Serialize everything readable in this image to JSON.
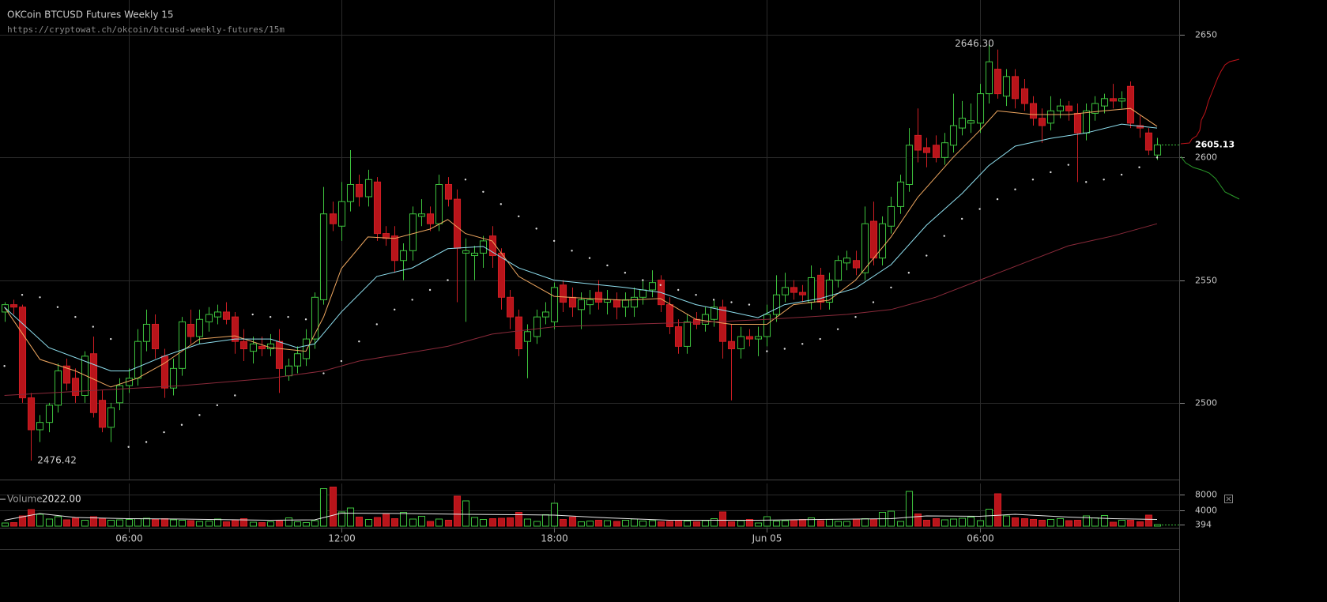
{
  "chart_data": {
    "type": "candlestick",
    "title": "OKCoin BTCUSD Futures Weekly 15",
    "subtitle": "https://cryptowat.ch/okcoin/btcusd-weekly-futures/15m",
    "xlim": [
      -0.5,
      132.5
    ],
    "xticks": [
      {
        "value": 14,
        "label": "06:00"
      },
      {
        "value": 38,
        "label": "12:00"
      },
      {
        "value": 62,
        "label": "18:00"
      },
      {
        "value": 86,
        "label": "Jun 05"
      },
      {
        "value": 110,
        "label": "06:00"
      }
    ],
    "ylim": [
      2468.7,
      2664.2
    ],
    "yticks": [
      2500,
      2550,
      2600,
      2650
    ],
    "grid": true,
    "up_color": "#3ec43e",
    "down_color": "#b8141a",
    "ohlc": [
      [
        2537,
        2541,
        2533,
        2540
      ],
      [
        2540,
        2542,
        2536,
        2539
      ],
      [
        2539,
        2540,
        2500,
        2502
      ],
      [
        2502,
        2504,
        2476.42,
        2489
      ],
      [
        2489,
        2495,
        2484,
        2492
      ],
      [
        2492,
        2500,
        2488,
        2499
      ],
      [
        2499,
        2516,
        2496,
        2513
      ],
      [
        2515,
        2518,
        2505,
        2508
      ],
      [
        2510,
        2514,
        2500,
        2503
      ],
      [
        2503,
        2521,
        2500,
        2519
      ],
      [
        2520,
        2527,
        2494,
        2496
      ],
      [
        2501,
        2505,
        2488,
        2490
      ],
      [
        2490,
        2500,
        2484,
        2498
      ],
      [
        2500,
        2510,
        2497,
        2507
      ],
      [
        2507,
        2514,
        2504,
        2510
      ],
      [
        2510,
        2530,
        2507,
        2525
      ],
      [
        2525,
        2538,
        2521,
        2532
      ],
      [
        2532,
        2536,
        2518,
        2522
      ],
      [
        2519,
        2522,
        2502,
        2506
      ],
      [
        2506,
        2518,
        2503,
        2514
      ],
      [
        2514,
        2535,
        2511,
        2533
      ],
      [
        2532,
        2538,
        2524,
        2527
      ],
      [
        2527,
        2538,
        2524,
        2534
      ],
      [
        2533,
        2539,
        2529,
        2536
      ],
      [
        2535,
        2540,
        2532,
        2537
      ],
      [
        2537,
        2541,
        2532,
        2534
      ],
      [
        2535,
        2537,
        2520,
        2525
      ],
      [
        2525,
        2530,
        2517,
        2522
      ],
      [
        2521,
        2527,
        2516,
        2524
      ],
      [
        2523,
        2527,
        2519,
        2522
      ],
      [
        2522,
        2528,
        2519,
        2524
      ],
      [
        2525,
        2530,
        2504,
        2514
      ],
      [
        2511,
        2518,
        2509,
        2515
      ],
      [
        2515,
        2523,
        2512,
        2520
      ],
      [
        2518,
        2530,
        2515,
        2526
      ],
      [
        2526,
        2545,
        2522,
        2543
      ],
      [
        2542,
        2588,
        2540,
        2577
      ],
      [
        2577,
        2582,
        2570,
        2573
      ],
      [
        2572,
        2590,
        2566,
        2582
      ],
      [
        2582,
        2603,
        2578,
        2589
      ],
      [
        2589,
        2593,
        2580,
        2584
      ],
      [
        2584,
        2595,
        2580,
        2591
      ],
      [
        2590,
        2592,
        2566,
        2569
      ],
      [
        2569,
        2572,
        2564,
        2567
      ],
      [
        2568,
        2572,
        2553,
        2558
      ],
      [
        2558,
        2565,
        2550,
        2562
      ],
      [
        2562,
        2580,
        2558,
        2577
      ],
      [
        2576,
        2583,
        2572,
        2577
      ],
      [
        2577,
        2580,
        2570,
        2573
      ],
      [
        2573,
        2593,
        2570,
        2589
      ],
      [
        2589,
        2592,
        2580,
        2583
      ],
      [
        2583,
        2587,
        2541,
        2563
      ],
      [
        2561,
        2567,
        2533,
        2562
      ],
      [
        2560,
        2564,
        2550,
        2561
      ],
      [
        2561,
        2568,
        2555,
        2566
      ],
      [
        2568,
        2572,
        2555,
        2560
      ],
      [
        2561,
        2563,
        2538,
        2543
      ],
      [
        2543,
        2546,
        2530,
        2535
      ],
      [
        2535,
        2538,
        2519,
        2522
      ],
      [
        2525,
        2532,
        2510,
        2529
      ],
      [
        2527,
        2538,
        2524,
        2535
      ],
      [
        2535,
        2541,
        2532,
        2537
      ],
      [
        2533,
        2549,
        2530,
        2547
      ],
      [
        2548,
        2550,
        2537,
        2541
      ],
      [
        2543,
        2547,
        2535,
        2539
      ],
      [
        2538,
        2545,
        2530,
        2542
      ],
      [
        2540,
        2546,
        2536,
        2542
      ],
      [
        2545,
        2550,
        2538,
        2541
      ],
      [
        2541,
        2546,
        2536,
        2542
      ],
      [
        2542,
        2545,
        2534,
        2539
      ],
      [
        2539,
        2545,
        2535,
        2542
      ],
      [
        2539,
        2547,
        2535,
        2543
      ],
      [
        2543,
        2550,
        2540,
        2546
      ],
      [
        2546,
        2554,
        2543,
        2549
      ],
      [
        2550,
        2552,
        2537,
        2540
      ],
      [
        2540,
        2543,
        2528,
        2531
      ],
      [
        2531,
        2534,
        2520,
        2523
      ],
      [
        2523,
        2536,
        2520,
        2533
      ],
      [
        2534,
        2537,
        2530,
        2532
      ],
      [
        2532,
        2539,
        2529,
        2536
      ],
      [
        2534,
        2542,
        2531,
        2539
      ],
      [
        2539,
        2542,
        2518,
        2525
      ],
      [
        2525,
        2532,
        2501,
        2522
      ],
      [
        2522,
        2531,
        2518,
        2527
      ],
      [
        2527,
        2530,
        2523,
        2526
      ],
      [
        2526,
        2531,
        2519,
        2527
      ],
      [
        2527,
        2540,
        2523,
        2536
      ],
      [
        2536,
        2552,
        2533,
        2544
      ],
      [
        2544,
        2553,
        2541,
        2547
      ],
      [
        2547,
        2550,
        2542,
        2545
      ],
      [
        2545,
        2548,
        2541,
        2544
      ],
      [
        2541,
        2556,
        2538,
        2551
      ],
      [
        2552,
        2555,
        2538,
        2541
      ],
      [
        2541,
        2553,
        2538,
        2550
      ],
      [
        2550,
        2560,
        2547,
        2558
      ],
      [
        2557,
        2562,
        2554,
        2559
      ],
      [
        2558,
        2562,
        2552,
        2555
      ],
      [
        2553,
        2580,
        2550,
        2573
      ],
      [
        2574,
        2582,
        2556,
        2559
      ],
      [
        2559,
        2576,
        2556,
        2573
      ],
      [
        2572,
        2584,
        2569,
        2580
      ],
      [
        2580,
        2593,
        2577,
        2590
      ],
      [
        2589,
        2612,
        2586,
        2605
      ],
      [
        2609,
        2620,
        2598,
        2603
      ],
      [
        2604,
        2608,
        2596,
        2602
      ],
      [
        2605,
        2609,
        2598,
        2600
      ],
      [
        2600,
        2610,
        2597,
        2606
      ],
      [
        2605,
        2626,
        2602,
        2613
      ],
      [
        2612,
        2623,
        2609,
        2616
      ],
      [
        2614,
        2622,
        2610,
        2615
      ],
      [
        2614,
        2630,
        2610,
        2626
      ],
      [
        2626,
        2646.3,
        2622,
        2639
      ],
      [
        2636,
        2644,
        2624,
        2626
      ],
      [
        2625,
        2636,
        2621,
        2633
      ],
      [
        2633,
        2636,
        2620,
        2624
      ],
      [
        2628,
        2632,
        2619,
        2622
      ],
      [
        2622,
        2625,
        2613,
        2616
      ],
      [
        2616,
        2620,
        2606,
        2613
      ],
      [
        2614,
        2625,
        2611,
        2619
      ],
      [
        2619,
        2624,
        2616,
        2621
      ],
      [
        2621,
        2623,
        2615,
        2619
      ],
      [
        2618,
        2622,
        2590,
        2610
      ],
      [
        2610,
        2622,
        2607,
        2619
      ],
      [
        2618,
        2625,
        2615,
        2622
      ],
      [
        2621,
        2626,
        2618,
        2624
      ],
      [
        2624,
        2630,
        2620,
        2623
      ],
      [
        2623,
        2627,
        2620,
        2624
      ],
      [
        2629,
        2631,
        2612,
        2614
      ],
      [
        2613,
        2617,
        2608,
        2612
      ],
      [
        2610,
        2612,
        2601,
        2603
      ],
      [
        2601,
        2608,
        2599,
        2605.13
      ]
    ],
    "series": [
      {
        "style": "line",
        "color": "#f0a860",
        "x": [
          0,
          4,
          8,
          12,
          15,
          18,
          22,
          26,
          30,
          34,
          36,
          38,
          41,
          44,
          48,
          50,
          52,
          55,
          58,
          62,
          66,
          70,
          74,
          78,
          82,
          86,
          89,
          93,
          96,
          100,
          103,
          107,
          110,
          112,
          116,
          120,
          124,
          127,
          130
        ],
        "values": [
          2539,
          2517.7,
          2513,
          2506.4,
          2510,
          2516,
          2526,
          2527.3,
          2522.5,
          2521,
          2535,
          2554.7,
          2567.6,
          2567,
          2570.8,
          2574.7,
          2569,
          2566,
          2551.5,
          2543.4,
          2542.5,
          2541.8,
          2542.5,
          2534,
          2532,
          2532,
          2540,
          2541.8,
          2550,
          2567.6,
          2583.7,
          2600,
          2611,
          2619,
          2617.5,
          2617.5,
          2619,
          2620,
          2612.7
        ]
      },
      {
        "style": "line",
        "color": "#8fe0f0",
        "x": [
          0,
          5,
          12,
          14,
          18,
          22,
          26,
          30,
          33,
          35,
          38,
          42,
          46,
          50,
          54,
          58,
          62,
          70,
          74,
          78,
          82,
          85,
          88,
          92,
          96,
          100,
          104,
          108,
          111,
          114,
          118,
          122,
          126,
          130
        ],
        "values": [
          2539,
          2522.5,
          2513,
          2513,
          2519,
          2524,
          2526,
          2526,
          2522.5,
          2524,
          2537,
          2551.5,
          2555,
          2562.8,
          2563.7,
          2555,
          2550,
          2547,
          2545,
          2540,
          2537,
          2534.7,
          2540,
          2542.5,
          2546.7,
          2556.3,
          2572.4,
          2585.3,
          2596.6,
          2604.6,
          2607.8,
          2610,
          2613.6,
          2612
        ]
      },
      {
        "style": "line",
        "color": "#8a2a3a",
        "x": [
          0,
          10,
          20,
          30,
          36,
          40,
          50,
          55,
          62,
          70,
          80,
          86,
          95,
          100,
          105,
          110,
          115,
          120,
          125,
          130
        ],
        "values": [
          2503,
          2505,
          2507,
          2510,
          2513,
          2517,
          2523,
          2528,
          2531,
          2532,
          2533,
          2534,
          2536,
          2538,
          2543,
          2550,
          2557,
          2564,
          2568,
          2573
        ]
      },
      {
        "style": "dots",
        "color": "#dddddd",
        "x": [
          0,
          2,
          4,
          6,
          8,
          10,
          12,
          14,
          16,
          18,
          20,
          22,
          24,
          26,
          28,
          30,
          32,
          34,
          36,
          38,
          40,
          42,
          44,
          46,
          48,
          50,
          52,
          54,
          56,
          58,
          60,
          62,
          64,
          66,
          68,
          70,
          72,
          74,
          76,
          78,
          80,
          82,
          84,
          86,
          88,
          90,
          92,
          94,
          96,
          98,
          100,
          102,
          104,
          106,
          108,
          110,
          112,
          114,
          116,
          118,
          120,
          122,
          124,
          126,
          128,
          130
        ],
        "values": [
          2515,
          2544,
          2543,
          2539,
          2535,
          2531,
          2526,
          2482,
          2484,
          2488,
          2491,
          2495,
          2499,
          2503,
          2536,
          2535,
          2535,
          2534,
          2512,
          2517,
          2525,
          2532,
          2538,
          2542,
          2546,
          2550,
          2591,
          2586,
          2581,
          2576,
          2571,
          2566,
          2562,
          2559,
          2556,
          2553,
          2550,
          2548,
          2546,
          2544,
          2542,
          2541,
          2540,
          2521,
          2522,
          2524,
          2526,
          2530,
          2535,
          2541,
          2547,
          2553,
          2560,
          2568,
          2575,
          2579,
          2583,
          2587,
          2591,
          2594,
          2597,
          2590,
          2591,
          2593,
          2596,
          2600
        ]
      }
    ],
    "annotations": [
      {
        "x": 111,
        "value": 2646.3,
        "label": "2646.30"
      },
      {
        "x": 3,
        "value": 2476.42,
        "label": "2476.42"
      }
    ],
    "last_price": 2605.13,
    "volume": {
      "label": "Volume",
      "current": {
        "value": 2022,
        "label": "2022.00"
      },
      "ylim": [
        0,
        10800
      ],
      "yticks": [
        8000,
        4000,
        394
      ],
      "values": [
        800,
        900,
        2600,
        4200,
        3000,
        1800,
        2400,
        1600,
        2000,
        1500,
        2400,
        1900,
        1500,
        1600,
        1700,
        1900,
        2000,
        1700,
        1900,
        1600,
        1500,
        1400,
        1200,
        1300,
        1800,
        1100,
        1600,
        1900,
        1000,
        900,
        1100,
        1300,
        2100,
        1100,
        900,
        1400,
        9500,
        9900,
        3600,
        4600,
        2300,
        1700,
        2200,
        3000,
        1900,
        3500,
        1800,
        2500,
        1200,
        1800,
        1500,
        7600,
        6400,
        2200,
        1700,
        1900,
        2000,
        2100,
        3500,
        1800,
        1200,
        2900,
        5800,
        1700,
        2300,
        1100,
        1300,
        1500,
        1400,
        1200,
        1500,
        1800,
        1300,
        1400,
        1100,
        1200,
        1500,
        1300,
        1100,
        1400,
        1900,
        3600,
        1100,
        1400,
        1700,
        800,
        2400,
        1300,
        1400,
        1600,
        1700,
        2100,
        1400,
        1700,
        1200,
        1200,
        1800,
        1900,
        1800,
        3500,
        3800,
        1200,
        8800,
        3100,
        1500,
        1900,
        1600,
        1800,
        2000,
        2300,
        1400,
        4300,
        8200,
        2600,
        2100,
        1900,
        1700,
        1500,
        1700,
        1900,
        1400,
        1500,
        2600,
        2100,
        2700,
        1000,
        1500,
        1500,
        1100,
        2800,
        394
      ],
      "ma": {
        "color": "#e8e8e8",
        "x": [
          0,
          4,
          8,
          14,
          20,
          30,
          35,
          38,
          45,
          52,
          58,
          62,
          68,
          75,
          85,
          92,
          100,
          104,
          110,
          114,
          120,
          125,
          130
        ],
        "values": [
          1500,
          3200,
          2200,
          1900,
          1800,
          1500,
          1600,
          3300,
          3200,
          3000,
          2900,
          2800,
          2100,
          1500,
          1500,
          1700,
          1900,
          2600,
          2500,
          3000,
          2300,
          1900,
          1700
        ]
      }
    }
  }
}
